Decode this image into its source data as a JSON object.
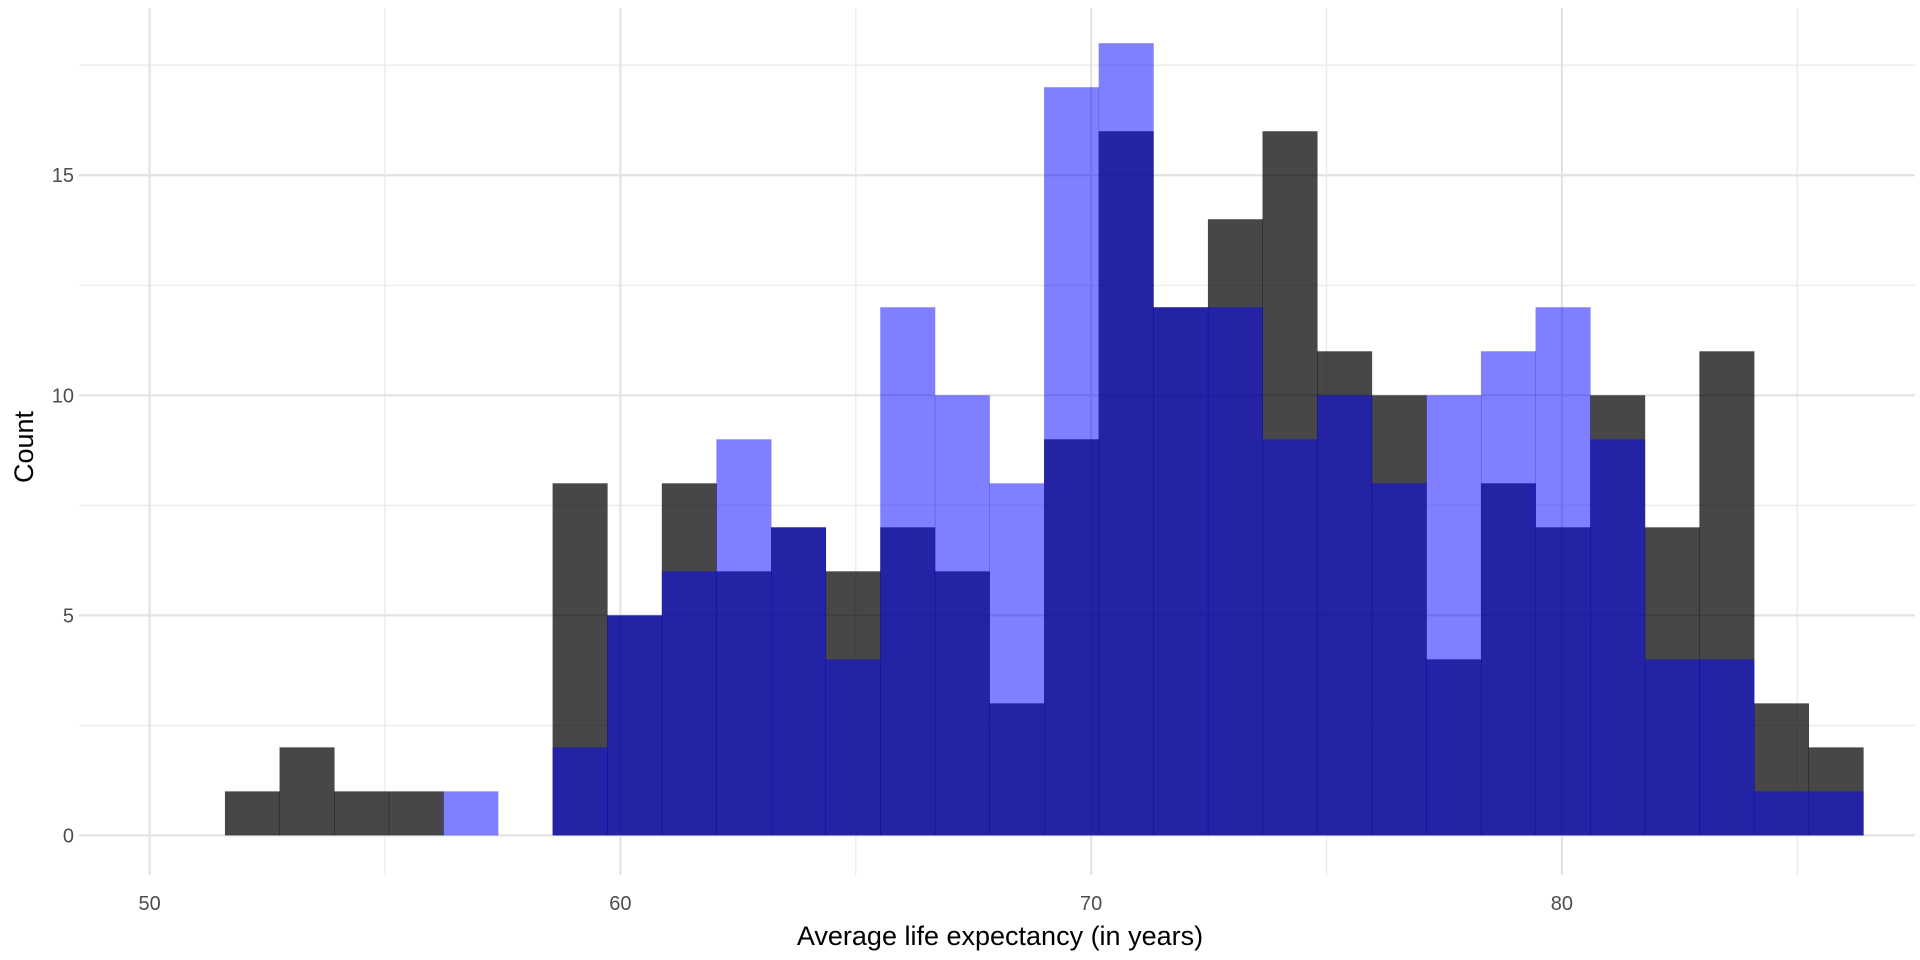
{
  "chart_data": {
    "type": "bar",
    "subtype": "overlapping-histogram",
    "title": "",
    "xlabel": "Average life expectancy (in years)",
    "ylabel": "Count",
    "xlim": [
      48.5,
      87.5
    ],
    "ylim": [
      -0.9,
      18.8
    ],
    "x_ticks": [
      50,
      60,
      70,
      80
    ],
    "y_ticks": [
      0,
      5,
      10,
      15
    ],
    "grid": true,
    "legend": "none",
    "bin_starts": [
      51.6,
      52.76,
      53.92,
      55.08,
      56.24,
      57.4,
      58.56,
      59.72,
      60.88,
      62.04,
      63.2,
      64.36,
      65.52,
      66.68,
      67.84,
      69.0,
      70.16,
      71.32,
      72.48,
      73.64,
      74.8,
      75.96,
      77.12,
      78.28,
      79.44,
      80.6,
      81.76,
      82.92,
      84.08,
      85.24
    ],
    "bin_width": 1.16,
    "series": [
      {
        "color": "#000000",
        "opacity": 0.72,
        "values": [
          1,
          2,
          1,
          1,
          0,
          0,
          8,
          5,
          8,
          6,
          7,
          6,
          7,
          6,
          3,
          9,
          16,
          12,
          14,
          16,
          11,
          10,
          4,
          8,
          7,
          10,
          7,
          11,
          3,
          2
        ]
      },
      {
        "color": "#0000ff",
        "opacity": 0.5,
        "values": [
          0,
          0,
          0,
          0,
          1,
          0,
          2,
          5,
          6,
          9,
          7,
          4,
          12,
          10,
          8,
          17,
          18,
          12,
          12,
          9,
          10,
          8,
          10,
          11,
          12,
          9,
          4,
          4,
          1,
          1
        ]
      }
    ]
  }
}
